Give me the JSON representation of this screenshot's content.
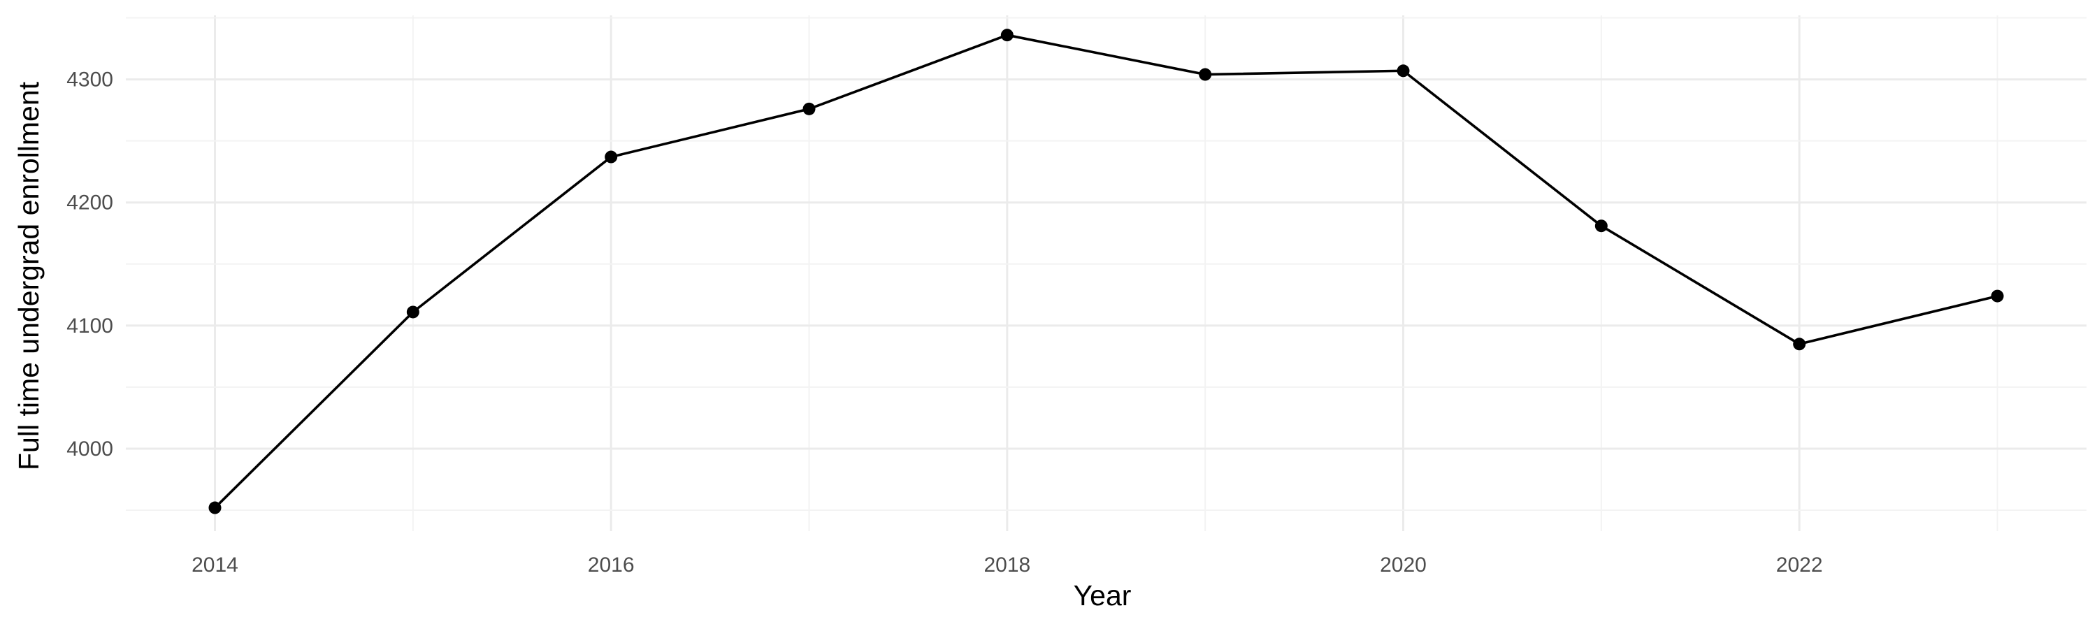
{
  "chart_data": {
    "type": "line",
    "title": "",
    "xlabel": "Year",
    "ylabel": "Full time undergrad enrollment",
    "x": [
      2014,
      2015,
      2016,
      2017,
      2018,
      2019,
      2020,
      2021,
      2022,
      2023
    ],
    "series": [
      {
        "values": [
          3952,
          4111,
          4237,
          4276,
          4336,
          4304,
          4307,
          4181,
          4085,
          4124
        ]
      }
    ],
    "x_ticks": [
      2014,
      2016,
      2018,
      2020,
      2022
    ],
    "x_tick_labels": [
      "2014",
      "2016",
      "2018",
      "2020",
      "2022"
    ],
    "y_ticks": [
      4000,
      4100,
      4200,
      4300
    ],
    "y_tick_labels": [
      "4000",
      "4100",
      "4200",
      "4300"
    ],
    "xlim": [
      2013.55,
      2023.45
    ],
    "ylim": [
      3933,
      4352
    ],
    "grid": true,
    "legend": "none",
    "colors": {
      "line": "#000000",
      "point": "#000000",
      "grid_major": "#ebebeb",
      "grid_minor": "#f3f3f3",
      "tick_text": "#4d4d4d"
    }
  }
}
